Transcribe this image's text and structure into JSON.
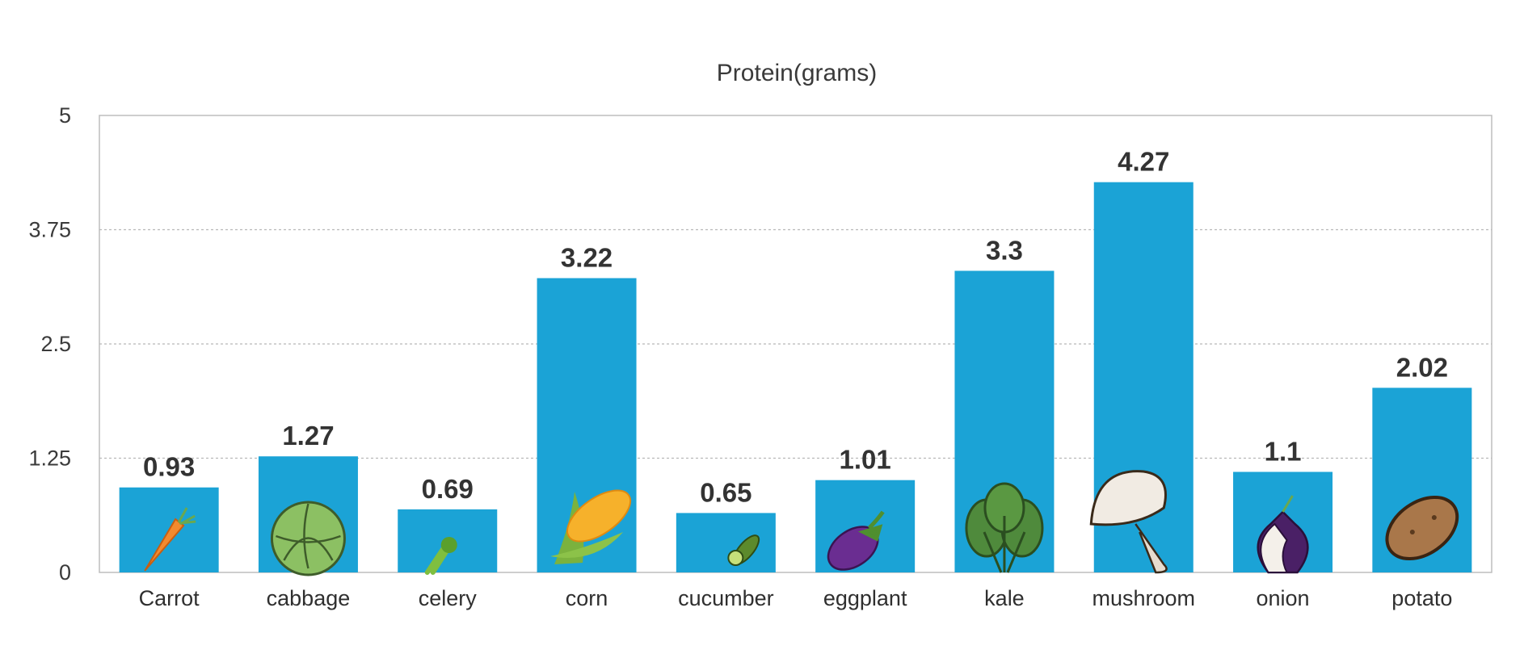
{
  "chart_data": {
    "type": "bar",
    "title": "Protein(grams)",
    "xlabel": "",
    "ylabel": "",
    "ylim": [
      0,
      5
    ],
    "yticks": [
      0,
      1.25,
      2.5,
      3.75,
      5
    ],
    "ytick_labels": [
      "0",
      "1.25",
      "2.5",
      "3.75",
      "5"
    ],
    "grid": true,
    "categories": [
      "Carrot",
      "cabbage",
      "celery",
      "corn",
      "cucumber",
      "eggplant",
      "kale",
      "mushroom",
      "onion",
      "potato"
    ],
    "values": [
      0.93,
      1.27,
      0.69,
      3.22,
      0.65,
      1.01,
      3.3,
      4.27,
      1.1,
      2.02
    ],
    "value_labels": [
      "0.93",
      "1.27",
      "0.69",
      "3.22",
      "0.65",
      "1.01",
      "3.3",
      "4.27",
      "1.1",
      "2.02"
    ],
    "icons": [
      "carrot-icon",
      "cabbage-icon",
      "celery-icon",
      "corn-icon",
      "cucumber-icon",
      "eggplant-icon",
      "kale-icon",
      "mushroom-icon",
      "onion-icon",
      "potato-icon"
    ],
    "colors": {
      "bar": "#1ba3d6",
      "grid": "#b8b8b8",
      "frame": "#bdbdbd"
    }
  }
}
